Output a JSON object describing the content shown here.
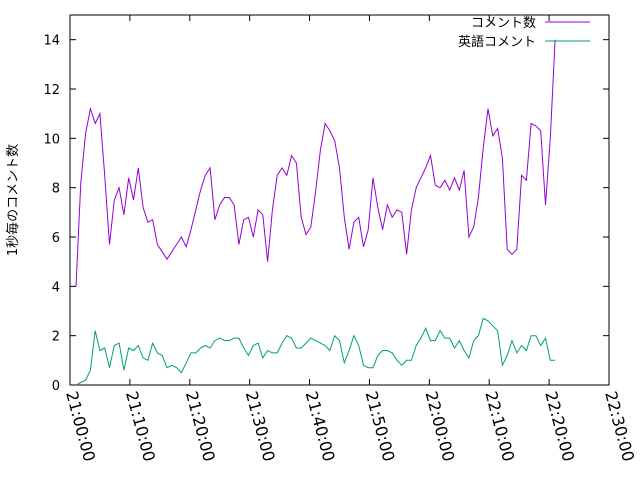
{
  "chart_data": {
    "type": "line",
    "y_label": "1秒毎のコメント数",
    "legend": "top-right",
    "xlim": [
      "21:00:00",
      "22:30:00"
    ],
    "xticks": [
      "21:00:00",
      "21:10:00",
      "21:20:00",
      "21:30:00",
      "21:40:00",
      "21:50:00",
      "22:00:00",
      "22:10:00",
      "22:20:00",
      "22:30:00"
    ],
    "ylim": [
      0,
      15
    ],
    "yticks": [
      0,
      2,
      4,
      6,
      8,
      10,
      12,
      14
    ],
    "x": [
      "21:01:00",
      "21:01:48",
      "21:02:36",
      "21:03:24",
      "21:04:12",
      "21:05:00",
      "21:05:48",
      "21:06:36",
      "21:07:24",
      "21:08:12",
      "21:09:00",
      "21:09:48",
      "21:10:36",
      "21:11:24",
      "21:12:12",
      "21:13:00",
      "21:13:48",
      "21:14:36",
      "21:15:24",
      "21:16:12",
      "21:17:00",
      "21:17:48",
      "21:18:36",
      "21:19:24",
      "21:20:12",
      "21:21:00",
      "21:21:48",
      "21:22:36",
      "21:23:24",
      "21:24:12",
      "21:25:00",
      "21:25:48",
      "21:26:36",
      "21:27:24",
      "21:28:12",
      "21:29:00",
      "21:29:48",
      "21:30:36",
      "21:31:24",
      "21:32:12",
      "21:33:00",
      "21:33:48",
      "21:34:36",
      "21:35:24",
      "21:36:12",
      "21:37:00",
      "21:37:48",
      "21:38:36",
      "21:39:24",
      "21:40:12",
      "21:41:00",
      "21:41:48",
      "21:42:36",
      "21:43:24",
      "21:44:12",
      "21:45:00",
      "21:45:48",
      "21:46:36",
      "21:47:24",
      "21:48:12",
      "21:49:00",
      "21:49:48",
      "21:50:36",
      "21:51:24",
      "21:52:12",
      "21:53:00",
      "21:53:48",
      "21:54:36",
      "21:55:24",
      "21:56:12",
      "21:57:00",
      "21:57:48",
      "21:58:36",
      "21:59:24",
      "22:00:12",
      "22:01:00",
      "22:01:48",
      "22:02:36",
      "22:03:24",
      "22:04:12",
      "22:05:00",
      "22:05:48",
      "22:06:36",
      "22:07:24",
      "22:08:12",
      "22:09:00",
      "22:09:48",
      "22:10:36",
      "22:11:24",
      "22:12:12",
      "22:13:00",
      "22:13:48",
      "22:14:36",
      "22:15:24",
      "22:16:12",
      "22:17:00",
      "22:17:48",
      "22:18:36",
      "22:19:24",
      "22:20:12",
      "22:21:00"
    ],
    "series": [
      {
        "name": "コメント数",
        "color": "#9400d3",
        "values": [
          4.0,
          8.2,
          10.2,
          11.2,
          10.6,
          11.0,
          8.5,
          5.7,
          7.5,
          8.0,
          6.9,
          8.4,
          7.5,
          8.8,
          7.2,
          6.6,
          6.7,
          5.7,
          5.4,
          5.1,
          5.4,
          5.7,
          6.0,
          5.6,
          6.3,
          7.1,
          7.9,
          8.5,
          8.8,
          6.7,
          7.3,
          7.6,
          7.6,
          7.3,
          5.7,
          6.7,
          6.8,
          6.0,
          7.1,
          6.9,
          5.0,
          7.1,
          8.5,
          8.8,
          8.5,
          9.3,
          9.0,
          6.8,
          6.1,
          6.4,
          7.8,
          9.5,
          10.6,
          10.3,
          9.9,
          8.8,
          6.8,
          5.5,
          6.6,
          6.8,
          5.6,
          6.3,
          8.4,
          7.2,
          6.3,
          7.3,
          6.8,
          7.1,
          7.0,
          5.3,
          7.1,
          8.0,
          8.4,
          8.8,
          9.3,
          8.1,
          8.0,
          8.3,
          7.9,
          8.4,
          7.9,
          8.7,
          6.0,
          6.4,
          7.6,
          9.6,
          11.2,
          10.1,
          10.4,
          9.2,
          5.5,
          5.3,
          5.5,
          8.5,
          8.3,
          10.6,
          10.5,
          10.3,
          7.3,
          10.0,
          14.0
        ]
      },
      {
        "name": "英語コメント",
        "color": "#009e73",
        "values": [
          0,
          0.1,
          0.2,
          0.6,
          2.2,
          1.4,
          1.5,
          0.7,
          1.6,
          1.7,
          0.6,
          1.5,
          1.4,
          1.6,
          1.1,
          1.0,
          1.7,
          1.3,
          1.2,
          0.7,
          0.8,
          0.7,
          0.5,
          0.9,
          1.3,
          1.3,
          1.5,
          1.6,
          1.5,
          1.8,
          1.9,
          1.8,
          1.8,
          1.9,
          1.9,
          1.5,
          1.2,
          1.6,
          1.7,
          1.1,
          1.4,
          1.3,
          1.3,
          1.7,
          2.0,
          1.9,
          1.5,
          1.5,
          1.7,
          1.9,
          1.8,
          1.7,
          1.6,
          1.4,
          2.0,
          1.8,
          0.9,
          1.4,
          2.0,
          1.6,
          0.8,
          0.7,
          0.7,
          1.2,
          1.4,
          1.4,
          1.3,
          1.0,
          0.8,
          1.0,
          1.0,
          1.6,
          1.9,
          2.3,
          1.8,
          1.8,
          2.2,
          1.9,
          1.9,
          1.5,
          1.8,
          1.4,
          1.1,
          1.8,
          2.0,
          2.7,
          2.6,
          2.4,
          2.2,
          0.8,
          1.2,
          1.8,
          1.3,
          1.6,
          1.4,
          2.0,
          2.0,
          1.6,
          1.9,
          1.0,
          1.0
        ]
      }
    ]
  }
}
